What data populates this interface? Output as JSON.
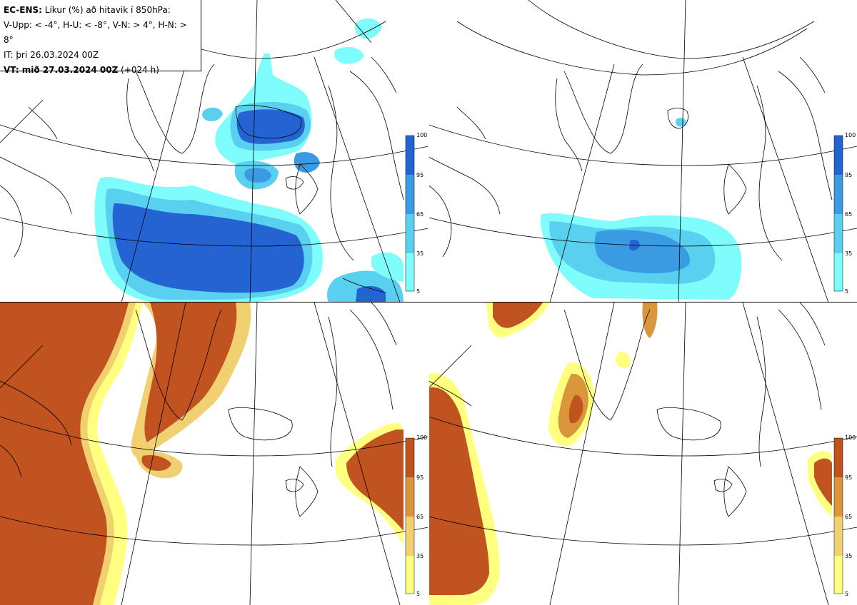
{
  "info": {
    "model": "EC-ENS:",
    "title": "Líkur (%) að hitavik í 850hPa:",
    "thresholds": "V-Upp: < -4°, H-U: < -8°, V-N: > 4°, H-N: > 8°",
    "initial_time": "IT: þri 26.03.2024 00Z",
    "valid_label": "VT: mið 27.03.2024 00Z",
    "valid_lead": "(+024 h)"
  },
  "colorbar_ticks": [
    "100",
    "95",
    "65",
    "35",
    "5"
  ],
  "colors": {
    "cold": [
      "#7ffcfc",
      "#5ad0f0",
      "#3a9be3",
      "#2464d2"
    ],
    "warm": [
      "#ffff80",
      "#f0d070",
      "#d9963a",
      "#c0531f"
    ],
    "coast": "#000000",
    "grid": "#000000"
  },
  "panels": [
    {
      "id": "tl",
      "field": "cold-4"
    },
    {
      "id": "tr",
      "field": "cold-8"
    },
    {
      "id": "bl",
      "field": "warm+4"
    },
    {
      "id": "br",
      "field": "warm+8"
    }
  ]
}
